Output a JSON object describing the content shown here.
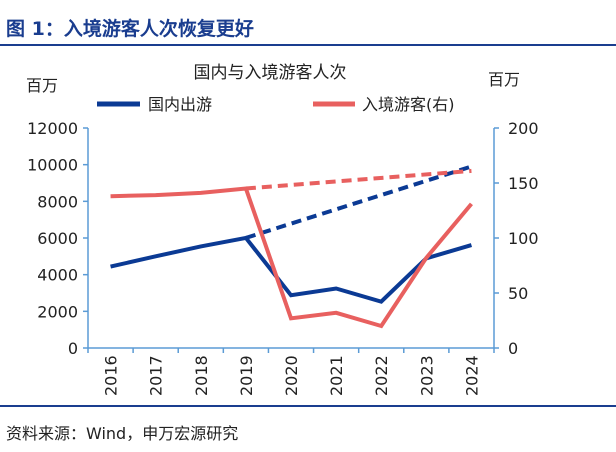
{
  "figure_title": "图 1：入境游客人次恢复更好",
  "source": "资料来源：Wind，申万宏源研究",
  "chart_data": {
    "type": "line",
    "title": "国内与入境游客人次",
    "left_unit": "百万",
    "right_unit": "百万",
    "categories": [
      "2016",
      "2017",
      "2018",
      "2019",
      "2020",
      "2021",
      "2022",
      "2023",
      "2024"
    ],
    "left_axis": {
      "min": 0,
      "max": 12000,
      "ticks": [
        0,
        2000,
        4000,
        6000,
        8000,
        10000,
        12000
      ]
    },
    "right_axis": {
      "min": 0,
      "max": 200,
      "ticks": [
        0,
        50,
        100,
        150,
        200
      ]
    },
    "legend_position": "top",
    "series": [
      {
        "name": "国内出游",
        "axis": "left",
        "color": "#0b3a94",
        "values": [
          4440,
          5000,
          5540,
          6006,
          2879,
          3246,
          2530,
          4891,
          5615
        ]
      },
      {
        "name": "入境游客(右)",
        "axis": "right",
        "color": "#e8605f",
        "values": [
          138,
          139,
          141,
          145,
          27,
          32,
          20,
          82,
          131
        ]
      }
    ],
    "trend_lines": [
      {
        "of": "国内出游",
        "axis": "left",
        "color": "#0b3a94",
        "style": "dashed",
        "from": [
          "2019",
          6006
        ],
        "to": [
          "2024",
          9900
        ]
      },
      {
        "of": "入境游客(右)",
        "axis": "right",
        "color": "#e8605f",
        "style": "dashed",
        "from": [
          "2019",
          145
        ],
        "to": [
          "2024",
          161
        ]
      }
    ],
    "axis_color": "#5b9bd5"
  }
}
